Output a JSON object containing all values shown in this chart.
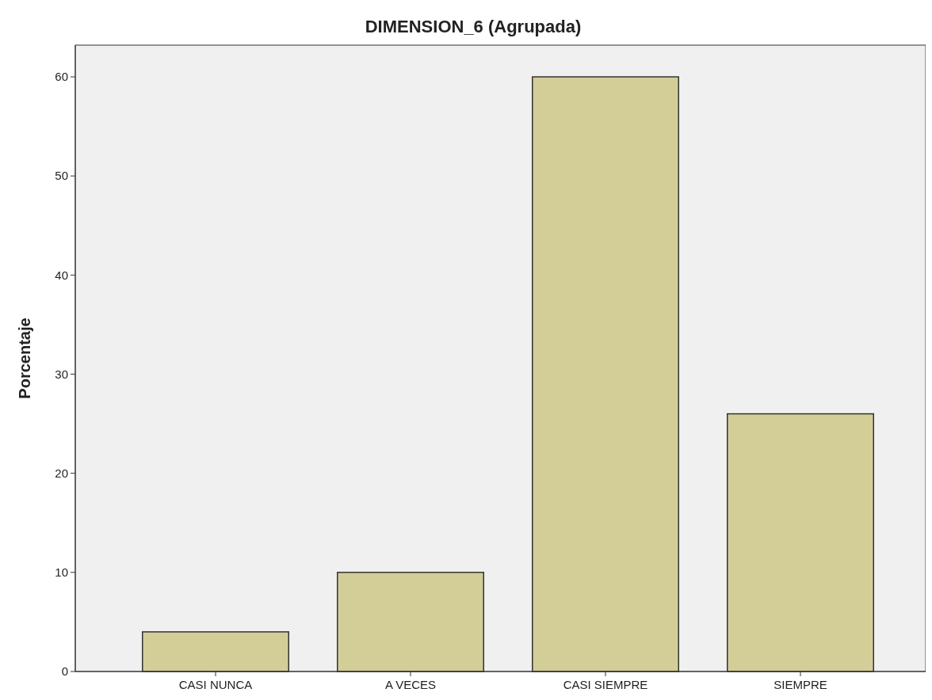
{
  "chart_data": {
    "type": "bar",
    "title": "DIMENSION_6 (Agrupada)",
    "ylabel": "Porcentaje",
    "categories": [
      "CASI NUNCA",
      "A VECES",
      "CASI SIEMPRE",
      "SIEMPRE"
    ],
    "values": [
      4,
      10,
      60,
      26
    ],
    "color": "#d3cd98",
    "ylim": [
      0,
      63.2
    ],
    "yticks": [
      0,
      10,
      20,
      30,
      40,
      50,
      60
    ],
    "grid": false
  }
}
